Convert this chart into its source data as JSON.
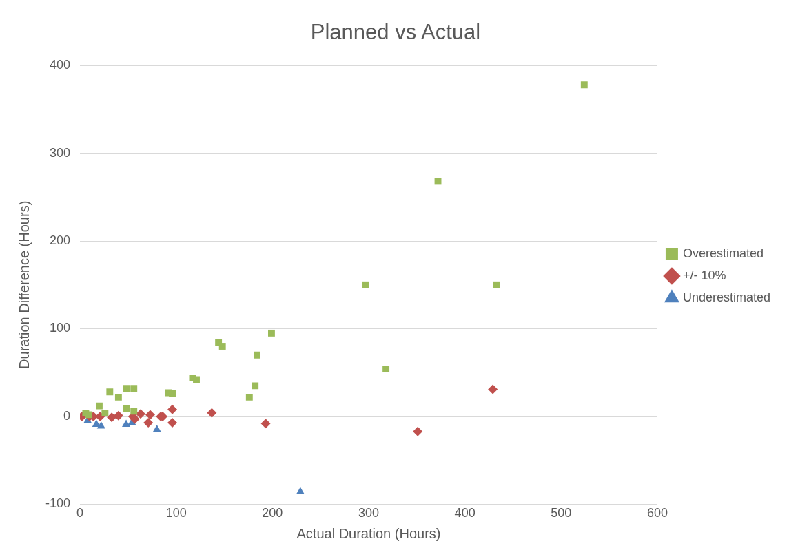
{
  "chart_data": {
    "type": "scatter",
    "title": "Planned vs Actual",
    "xlabel": "Actual Duration (Hours)",
    "ylabel": "Duration Difference (Hours)",
    "xlim": [
      0,
      600
    ],
    "xticks": [
      0,
      100,
      200,
      300,
      400,
      500,
      600
    ],
    "ylim": [
      -100,
      400
    ],
    "yticks": [
      -100,
      0,
      100,
      200,
      300,
      400
    ],
    "grid": "y",
    "legend": "right",
    "series": [
      {
        "name": "Overestimated",
        "color": "#9bbb59",
        "marker": "square",
        "x": [
          6,
          9,
          20,
          25,
          26,
          31,
          40,
          48,
          48,
          56,
          56,
          92,
          96,
          117,
          121,
          144,
          148,
          176,
          182,
          184,
          199,
          297,
          318,
          372,
          433,
          524
        ],
        "values": [
          4,
          2,
          12,
          null,
          4,
          28,
          22,
          32,
          9,
          32,
          6,
          27,
          26,
          44,
          42,
          84,
          80,
          22,
          35,
          70,
          95,
          150,
          54,
          268,
          150,
          378
        ]
      },
      {
        "name": "+/- 10%",
        "color": "#c0504d",
        "marker": "diamond",
        "x": [
          2,
          10,
          14,
          21,
          33,
          40,
          55,
          57,
          63,
          69,
          71,
          73,
          84,
          86,
          96,
          96,
          137,
          193,
          351,
          429
        ],
        "values": [
          0,
          0,
          0,
          0,
          -1,
          1,
          0,
          -3,
          3,
          null,
          -7,
          2,
          0,
          0,
          8,
          -7,
          4,
          -8,
          -17,
          31
        ]
      },
      {
        "name": "Underestimated",
        "color": "#4f81bd",
        "marker": "triangle",
        "x": [
          8,
          17,
          22,
          48,
          54,
          80,
          229
        ],
        "values": [
          -5,
          -9,
          -11,
          -9,
          -7,
          -15,
          -86
        ]
      }
    ]
  }
}
